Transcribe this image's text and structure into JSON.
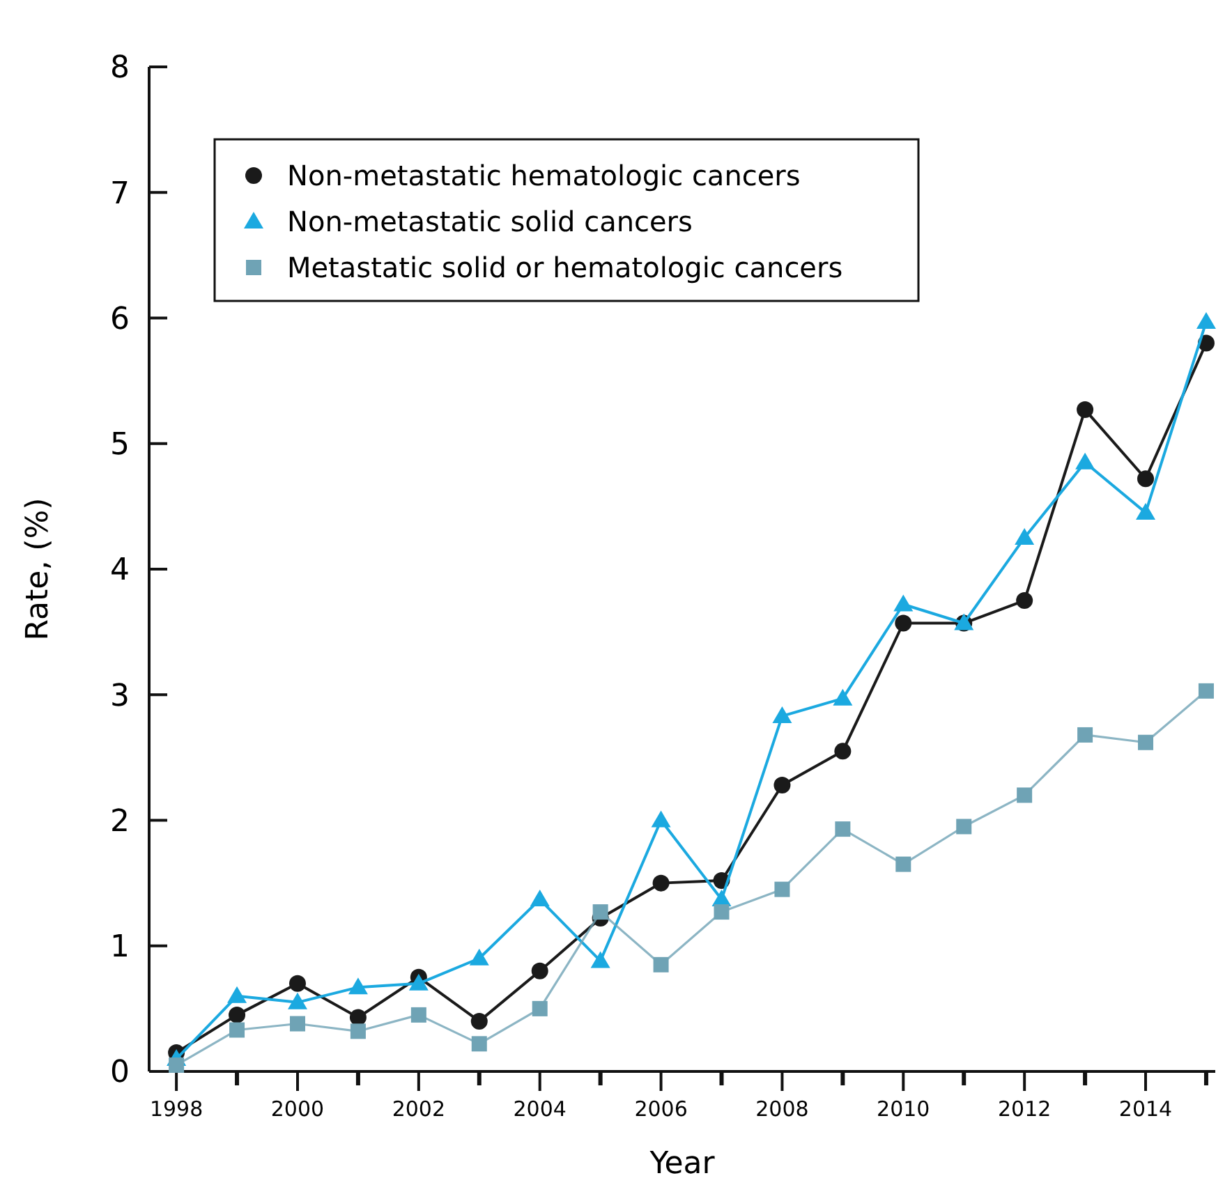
{
  "chart_data": {
    "type": "line",
    "xlabel": "Year",
    "ylabel": "Rate, (%)",
    "x": [
      1998,
      1999,
      2000,
      2001,
      2002,
      2003,
      2004,
      2005,
      2006,
      2007,
      2008,
      2009,
      2010,
      2011,
      2012,
      2013,
      2014,
      2015
    ],
    "series": [
      {
        "name": "Non-metastatic hematologic cancers",
        "color": "#1a1a1a",
        "marker": "circle",
        "values": [
          0.15,
          0.45,
          0.7,
          0.43,
          0.75,
          0.4,
          0.8,
          1.22,
          1.5,
          1.52,
          2.28,
          2.55,
          3.57,
          3.57,
          3.75,
          5.27,
          4.72,
          5.8
        ]
      },
      {
        "name": "Non-metastatic solid cancers",
        "color": "#1ba9e0",
        "marker": "triangle",
        "values": [
          0.1,
          0.6,
          0.55,
          0.67,
          0.7,
          0.9,
          1.37,
          0.88,
          2.0,
          1.37,
          2.83,
          2.97,
          3.72,
          3.57,
          4.25,
          4.85,
          4.45,
          5.97
        ]
      },
      {
        "name": "Metastatic solid or hematologic cancers",
        "color": "#6fa3b5",
        "marker": "square",
        "values": [
          0.05,
          0.33,
          0.38,
          0.32,
          0.45,
          0.22,
          0.5,
          1.27,
          0.85,
          1.27,
          1.45,
          1.93,
          1.65,
          1.95,
          2.2,
          2.68,
          2.62,
          3.03
        ]
      }
    ],
    "xlim": [
      1997.55,
      2015.15
    ],
    "xticks": [
      1998,
      {
        "value": 1999,
        "label": null
      },
      2000,
      {
        "value": 2001,
        "label": null
      },
      2002,
      {
        "value": 2003,
        "label": null
      },
      2004,
      {
        "value": 2005,
        "label": null
      },
      2006,
      {
        "value": 2007,
        "label": null
      },
      2008,
      {
        "value": 2009,
        "label": null
      },
      2010,
      {
        "value": 2011,
        "label": null
      },
      2012,
      {
        "value": 2013,
        "label": null
      },
      2014,
      {
        "value": 2015,
        "label": null
      }
    ],
    "ylim": [
      0,
      8
    ],
    "yticks": [
      0,
      1,
      2,
      3,
      4,
      5,
      6,
      7,
      8
    ],
    "grid": false,
    "legend": "top left",
    "line_style": "solid"
  }
}
